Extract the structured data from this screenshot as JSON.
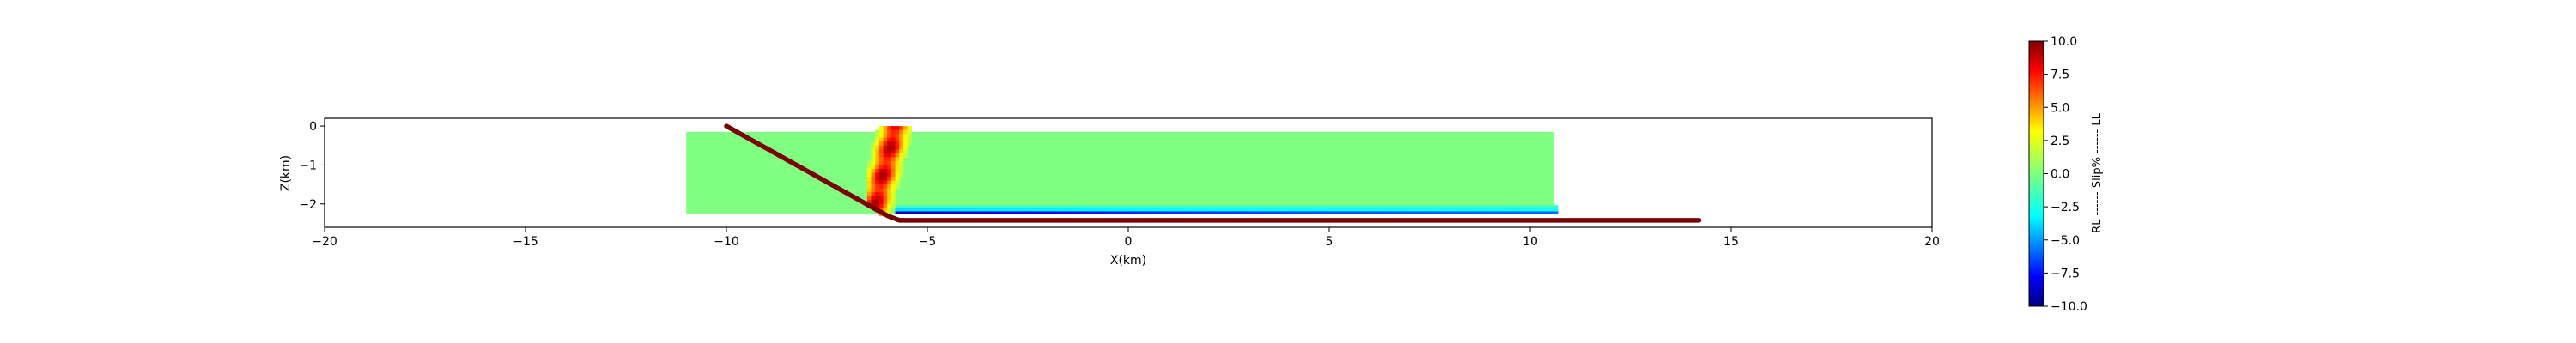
{
  "chart_data": {
    "type": "heatmap",
    "title": "",
    "xlabel": "X(km)",
    "ylabel": "Z(km)",
    "xlim": [
      -20,
      20
    ],
    "ylim": [
      -2.6,
      0.2
    ],
    "x_ticks": [
      -20,
      -15,
      -10,
      -5,
      0,
      5,
      10,
      15,
      20
    ],
    "x_tick_labels": [
      "−20",
      "−15",
      "−10",
      "−5",
      "0",
      "5",
      "10",
      "15",
      "20"
    ],
    "y_ticks": [
      0,
      -1,
      -2
    ],
    "y_tick_labels": [
      "0",
      "−1",
      "−2"
    ],
    "grid": false,
    "slip_patch_extent": {
      "x": [
        -11,
        10.6
      ],
      "z": [
        -2.25,
        -0.15
      ]
    },
    "slip_value_background": 0.0,
    "slip_concentration_band": {
      "x": [
        -6.5,
        -5.2
      ],
      "slip_max": 9.5
    },
    "negative_slip_band": {
      "x": [
        -5.8,
        10.6
      ],
      "z": [
        -2.25,
        -2.05
      ],
      "slip_min": -9.0
    },
    "fault_trace": {
      "x": [
        -10.0,
        -6.0,
        -5.7,
        14.2
      ],
      "z": [
        0.0,
        -2.3,
        -2.42,
        -2.42
      ]
    },
    "colorbar": {
      "label": "RL ------ Slip% ------ LL",
      "range": [
        -10.0,
        10.0
      ],
      "colormap": "jet",
      "ticks": [
        10.0,
        7.5,
        5.0,
        2.5,
        0.0,
        -2.5,
        -5.0,
        -7.5,
        -10.0
      ],
      "tick_labels": [
        "10.0",
        "7.5",
        "5.0",
        "2.5",
        "0.0",
        "−2.5",
        "−5.0",
        "−7.5",
        "−10.0"
      ]
    },
    "colors": {
      "fault_trace": "#7a0000",
      "background_slip": "#80ff80"
    }
  }
}
